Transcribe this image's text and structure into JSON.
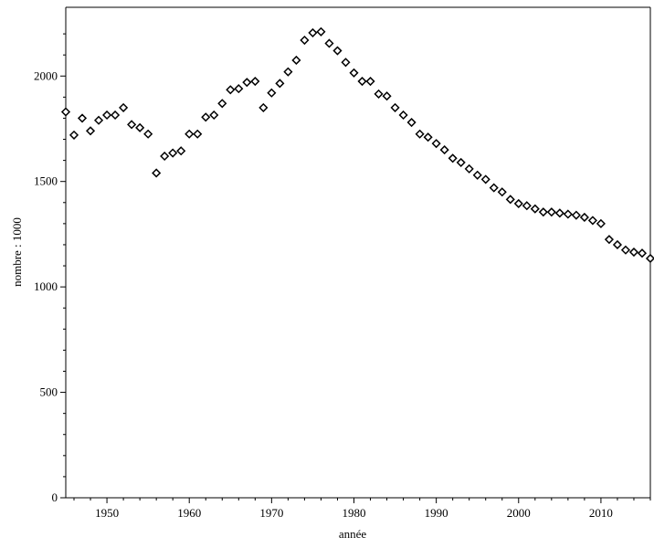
{
  "chart_data": {
    "type": "scatter",
    "title": "",
    "xlabel": "année",
    "ylabel": "nombre : 1000",
    "xlim": [
      1945,
      2016
    ],
    "ylim": [
      0,
      2300
    ],
    "xticks": [
      1950,
      1960,
      1970,
      1980,
      1990,
      2000,
      2010
    ],
    "yticks": [
      0,
      500,
      1000,
      1500,
      2000
    ],
    "xticks_minor": [
      1946,
      1948,
      1952,
      1954,
      1956,
      1958,
      1962,
      1964,
      1966,
      1968,
      1972,
      1974,
      1976,
      1978,
      1982,
      1984,
      1986,
      1988,
      1992,
      1994,
      1996,
      1998,
      2002,
      2004,
      2006,
      2008,
      2012,
      2014,
      2016
    ],
    "yticks_minor": [
      100,
      200,
      300,
      400,
      600,
      700,
      800,
      900,
      1100,
      1200,
      1300,
      1400,
      1600,
      1700,
      1800,
      1900,
      2100,
      2200
    ],
    "grid": false,
    "marker": "diamond",
    "series": [
      {
        "color": "#000000",
        "x": [
          1945,
          1946,
          1947,
          1948,
          1949,
          1950,
          1951,
          1952,
          1953,
          1954,
          1955,
          1956,
          1957,
          1958,
          1959,
          1960,
          1961,
          1962,
          1963,
          1964,
          1965,
          1966,
          1967,
          1968,
          1969,
          1970,
          1971,
          1972,
          1973,
          1974,
          1975,
          1976,
          1977,
          1978,
          1979,
          1980,
          1981,
          1982,
          1983,
          1984,
          1985,
          1986,
          1987,
          1988,
          1989,
          1990,
          1991,
          1992,
          1993,
          1994,
          1995,
          1996,
          1997,
          1998,
          1999,
          2000,
          2001,
          2002,
          2003,
          2004,
          2005,
          2006,
          2007,
          2008,
          2009,
          2010,
          2011,
          2012,
          2013,
          2014,
          2015,
          2016
        ],
        "y": [
          1830,
          1720,
          1800,
          1740,
          1790,
          1815,
          1815,
          1850,
          1770,
          1755,
          1725,
          1540,
          1620,
          1635,
          1645,
          1725,
          1725,
          1805,
          1815,
          1870,
          1935,
          1940,
          1970,
          1975,
          1850,
          1920,
          1965,
          2020,
          2075,
          2170,
          2205,
          2210,
          2155,
          2120,
          2065,
          2015,
          1975,
          1975,
          1915,
          1905,
          1850,
          1815,
          1780,
          1725,
          1710,
          1680,
          1650,
          1610,
          1590,
          1560,
          1530,
          1510,
          1470,
          1450,
          1415,
          1395,
          1385,
          1370,
          1355,
          1355,
          1350,
          1345,
          1340,
          1330,
          1315,
          1300,
          1225,
          1200,
          1175,
          1165,
          1160,
          1135
        ]
      }
    ]
  }
}
